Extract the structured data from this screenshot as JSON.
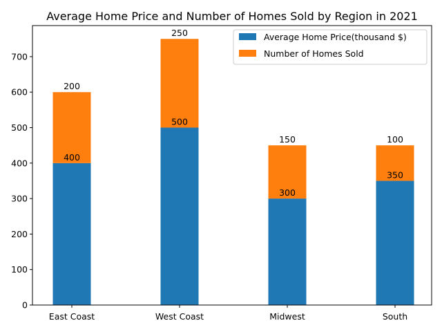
{
  "chart_data": {
    "type": "bar",
    "stacked": true,
    "title": "Average Home Price and Number of Homes Sold by Region in 2021",
    "xlabel": "",
    "ylabel": "",
    "categories": [
      "East Coast",
      "West Coast",
      "Midwest",
      "South"
    ],
    "series": [
      {
        "name": "Average Home Price(thousand $)",
        "values": [
          400,
          500,
          300,
          350
        ],
        "color": "#1f77b4"
      },
      {
        "name": "Number of Homes Sold",
        "values": [
          200,
          250,
          150,
          100
        ],
        "color": "#ff7f0e"
      }
    ],
    "ylim": [
      0,
      787.5
    ],
    "yticks": [
      0,
      100,
      200,
      300,
      400,
      500,
      600,
      700
    ],
    "grid": false,
    "legend": "upper-right"
  }
}
